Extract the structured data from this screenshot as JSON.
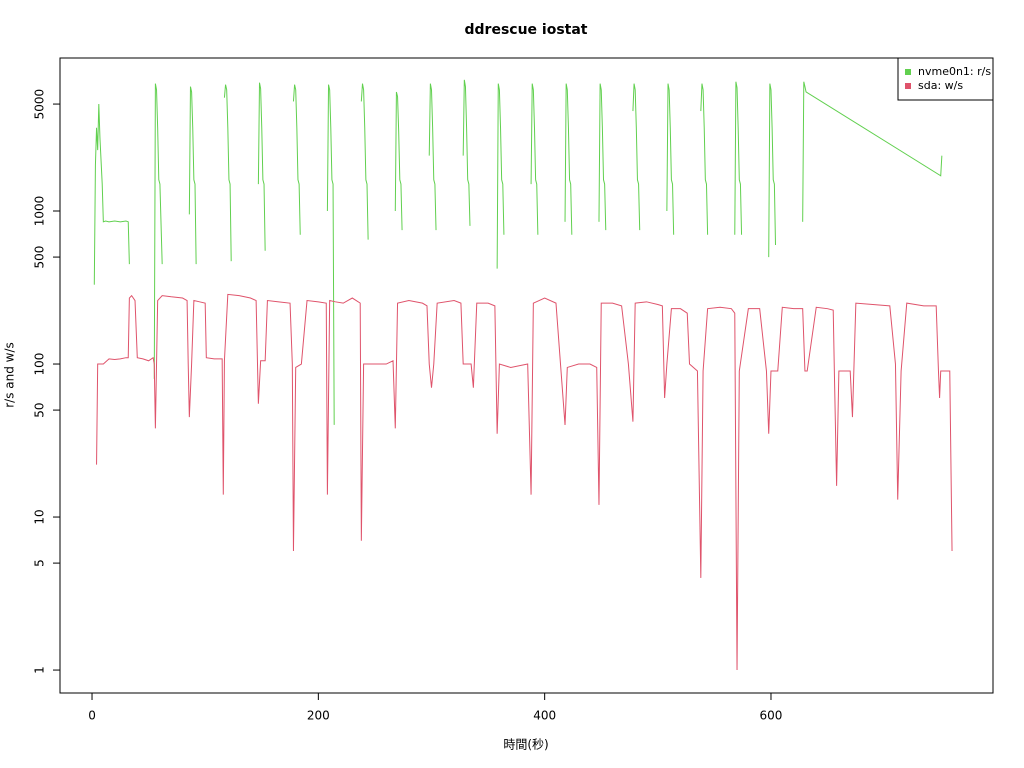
{
  "chart_data": {
    "type": "line",
    "title": "ddrescue iostat",
    "x_label": "時間(秒)",
    "y_label": "r/s and w/s",
    "ylog": true,
    "grid": false,
    "legend": "topright",
    "xlim": [
      -28.3,
      796.2
    ],
    "ylim": [
      0.708,
      10000
    ],
    "xticks": [
      0,
      200,
      400,
      600
    ],
    "yticks": [
      1,
      5,
      10,
      50,
      100,
      500,
      1000,
      5000
    ],
    "series": [
      {
        "name": "nvme0n1: r/s",
        "color": "#61D04F",
        "x": [
          2,
          3,
          4,
          5,
          6,
          7,
          9,
          10,
          12,
          15,
          20,
          25,
          30,
          32,
          33,
          34,
          55,
          56,
          57,
          58,
          59,
          60,
          62,
          63,
          86,
          87,
          88,
          89,
          90,
          91,
          92,
          93,
          117,
          118,
          119,
          120,
          121,
          122,
          123,
          124,
          147,
          148,
          149,
          150,
          151,
          152,
          153,
          154,
          178,
          179,
          180,
          181,
          182,
          183,
          184,
          185,
          208,
          209,
          210,
          211,
          212,
          213,
          214,
          215,
          238,
          239,
          240,
          241,
          242,
          243,
          244,
          245,
          268,
          269,
          270,
          271,
          272,
          273,
          274,
          275,
          298,
          299,
          300,
          301,
          302,
          303,
          304,
          305,
          328,
          329,
          330,
          331,
          332,
          333,
          334,
          335,
          358,
          359,
          360,
          361,
          362,
          363,
          364,
          365,
          388,
          389,
          390,
          391,
          392,
          393,
          394,
          395,
          418,
          419,
          420,
          421,
          422,
          423,
          424,
          425,
          448,
          449,
          450,
          451,
          452,
          453,
          454,
          455,
          478,
          479,
          480,
          481,
          482,
          483,
          484,
          485,
          508,
          509,
          510,
          511,
          512,
          513,
          514,
          515,
          538,
          539,
          540,
          541,
          542,
          543,
          544,
          545,
          568,
          569,
          570,
          571,
          572,
          573,
          574,
          575,
          598,
          599,
          600,
          601,
          602,
          603,
          604,
          605,
          628,
          629,
          630,
          631,
          750,
          751
        ],
        "values": [
          330,
          2000,
          3500,
          2500,
          5000,
          3000,
          1500,
          850,
          860,
          850,
          860,
          850,
          860,
          850,
          450,
          null,
          80,
          6800,
          6200,
          3500,
          1600,
          1500,
          450,
          null,
          950,
          6500,
          6000,
          3500,
          1600,
          1500,
          450,
          null,
          5500,
          6700,
          6200,
          3500,
          1600,
          1500,
          470,
          null,
          1500,
          6900,
          6300,
          3500,
          1600,
          1500,
          550,
          null,
          5200,
          6700,
          6200,
          3500,
          1600,
          1500,
          700,
          null,
          1000,
          6700,
          6200,
          3500,
          1600,
          1500,
          40,
          null,
          5200,
          6800,
          6200,
          3500,
          1600,
          1500,
          650,
          null,
          1000,
          6000,
          5600,
          3300,
          1600,
          1500,
          750,
          null,
          2300,
          6800,
          6200,
          3500,
          1600,
          1500,
          750,
          null,
          2300,
          7200,
          6500,
          3500,
          1600,
          1500,
          800,
          null,
          420,
          6800,
          6200,
          3500,
          1600,
          1500,
          700,
          null,
          1500,
          6800,
          6200,
          3500,
          1600,
          1500,
          700,
          null,
          850,
          6800,
          6200,
          3500,
          1600,
          1500,
          700,
          null,
          850,
          6800,
          6200,
          3500,
          1600,
          1500,
          750,
          null,
          4500,
          6800,
          6200,
          3500,
          1600,
          1500,
          750,
          null,
          1000,
          6800,
          6200,
          3500,
          1600,
          1500,
          700,
          null,
          4500,
          6800,
          6200,
          3500,
          1600,
          1500,
          700,
          null,
          700,
          7000,
          6400,
          3500,
          1600,
          1500,
          700,
          null,
          500,
          6800,
          6200,
          3500,
          1600,
          1500,
          600,
          null,
          850,
          7000,
          6500,
          6000,
          1700,
          2300
        ]
      },
      {
        "name": "sda: w/s",
        "color": "#DF536B",
        "x": [
          4,
          5,
          10,
          15,
          20,
          25,
          30,
          32,
          33,
          35,
          38,
          40,
          45,
          50,
          54,
          55,
          56,
          58,
          62,
          70,
          80,
          84,
          85,
          86,
          88,
          90,
          95,
          100,
          101,
          108,
          115,
          116,
          117,
          120,
          130,
          140,
          145,
          147,
          149,
          153,
          155,
          165,
          175,
          177,
          178,
          180,
          185,
          190,
          200,
          207,
          208,
          210,
          215,
          222,
          230,
          237,
          238,
          240,
          250,
          260,
          266,
          268,
          270,
          280,
          292,
          296,
          298,
          300,
          302,
          305,
          320,
          326,
          328,
          335,
          337,
          340,
          350,
          356,
          358,
          360,
          370,
          385,
          388,
          390,
          400,
          410,
          414,
          418,
          420,
          430,
          440,
          446,
          448,
          450,
          460,
          468,
          474,
          478,
          480,
          490,
          500,
          504,
          506,
          508,
          512,
          520,
          526,
          528,
          535,
          538,
          540,
          544,
          555,
          565,
          568,
          570,
          572,
          580,
          590,
          596,
          598,
          600,
          606,
          610,
          620,
          628,
          630,
          632,
          640,
          650,
          655,
          656,
          658,
          660,
          670,
          672,
          675,
          690,
          705,
          710,
          712,
          715,
          720,
          735,
          746,
          748,
          749,
          750,
          758,
          760
        ],
        "values": [
          22,
          100,
          100,
          108,
          107,
          108,
          110,
          110,
          270,
          280,
          260,
          110,
          108,
          105,
          110,
          100,
          38,
          260,
          280,
          275,
          270,
          260,
          100,
          45,
          100,
          260,
          255,
          250,
          110,
          108,
          108,
          14,
          105,
          285,
          280,
          270,
          260,
          55,
          105,
          105,
          260,
          255,
          250,
          100,
          6,
          95,
          100,
          260,
          255,
          250,
          14,
          260,
          255,
          250,
          270,
          250,
          7,
          100,
          100,
          100,
          105,
          38,
          250,
          260,
          250,
          240,
          100,
          70,
          100,
          250,
          260,
          250,
          100,
          100,
          70,
          250,
          250,
          240,
          35,
          100,
          95,
          100,
          14,
          250,
          270,
          250,
          100,
          40,
          95,
          100,
          100,
          95,
          12,
          250,
          250,
          240,
          100,
          42,
          250,
          255,
          245,
          240,
          60,
          100,
          230,
          230,
          215,
          100,
          90,
          4,
          90,
          230,
          235,
          230,
          215,
          1,
          90,
          230,
          230,
          90,
          35,
          90,
          90,
          235,
          230,
          230,
          90,
          90,
          235,
          230,
          225,
          90,
          16,
          90,
          90,
          45,
          250,
          245,
          240,
          100,
          13,
          90,
          250,
          240,
          240,
          90,
          60,
          90,
          90,
          6
        ]
      }
    ]
  }
}
